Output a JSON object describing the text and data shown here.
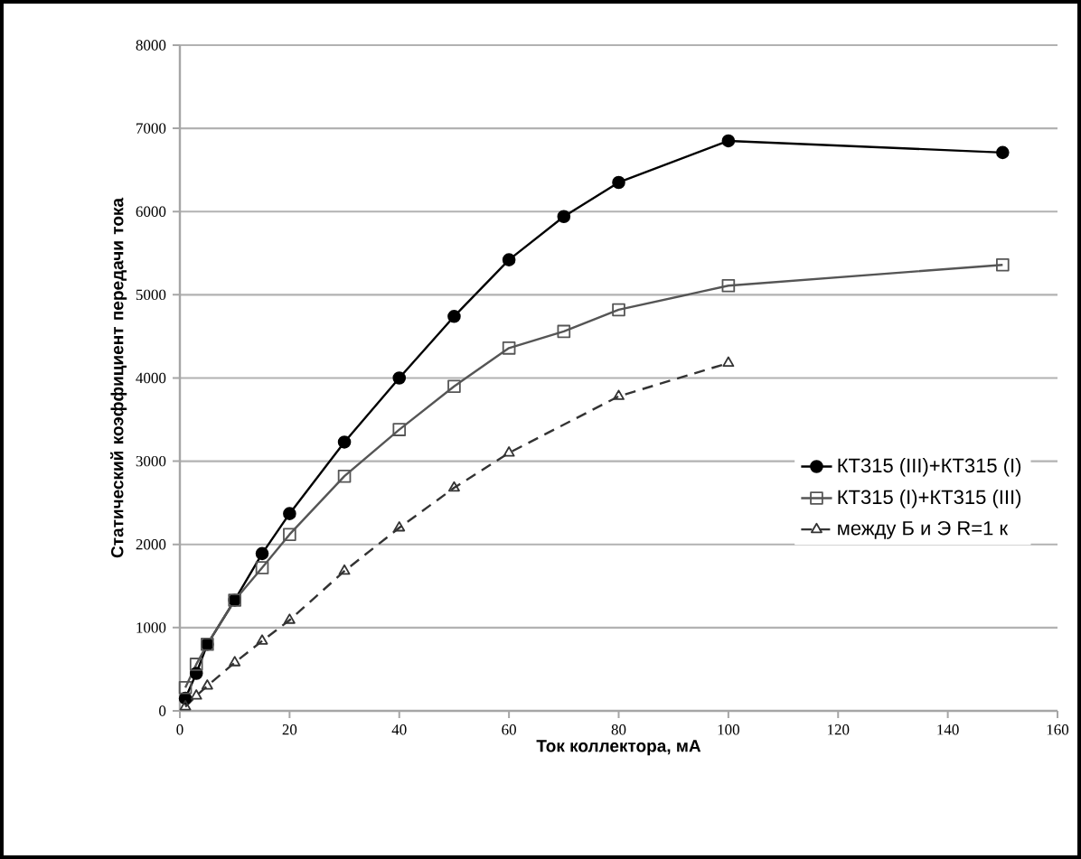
{
  "chart_data": {
    "type": "line",
    "xlabel": "Ток коллектора, мА",
    "ylabel": "Статический коэффициент передачи тока",
    "xlim": [
      0,
      160
    ],
    "xticks": [
      0,
      20,
      40,
      60,
      80,
      100,
      120,
      140,
      160
    ],
    "ylim": [
      0,
      8000
    ],
    "yticks": [
      0,
      1000,
      2000,
      3000,
      4000,
      5000,
      6000,
      7000,
      8000
    ],
    "grid": "y",
    "legend": "right",
    "series": [
      {
        "name": "КТ315 (III)+КТ315 (I)",
        "color": "#000000",
        "marker": "circle",
        "line_style": "solid",
        "x": [
          1,
          3,
          5,
          10,
          15,
          20,
          30,
          40,
          50,
          60,
          70,
          80,
          100,
          150
        ],
        "values": [
          150,
          450,
          800,
          1330,
          1890,
          2370,
          3230,
          4000,
          4740,
          5420,
          5940,
          6350,
          6850,
          6710
        ]
      },
      {
        "name": "КТ315 (I)+КТ315 (III)",
        "color": "#555555",
        "marker": "square",
        "line_style": "solid",
        "x": [
          1,
          3,
          5,
          10,
          15,
          20,
          30,
          40,
          50,
          60,
          70,
          80,
          100,
          150
        ],
        "values": [
          280,
          560,
          800,
          1330,
          1720,
          2120,
          2820,
          3380,
          3900,
          4360,
          4560,
          4820,
          5110,
          5360
        ]
      },
      {
        "name": "между Б и Э R=1 к",
        "color": "#333333",
        "marker": "triangle",
        "line_style": "dashed",
        "x": [
          1,
          3,
          5,
          10,
          15,
          20,
          30,
          40,
          50,
          60,
          80,
          100
        ],
        "values": [
          50,
          180,
          300,
          580,
          840,
          1090,
          1680,
          2200,
          2680,
          3100,
          3780,
          4180
        ]
      }
    ]
  }
}
